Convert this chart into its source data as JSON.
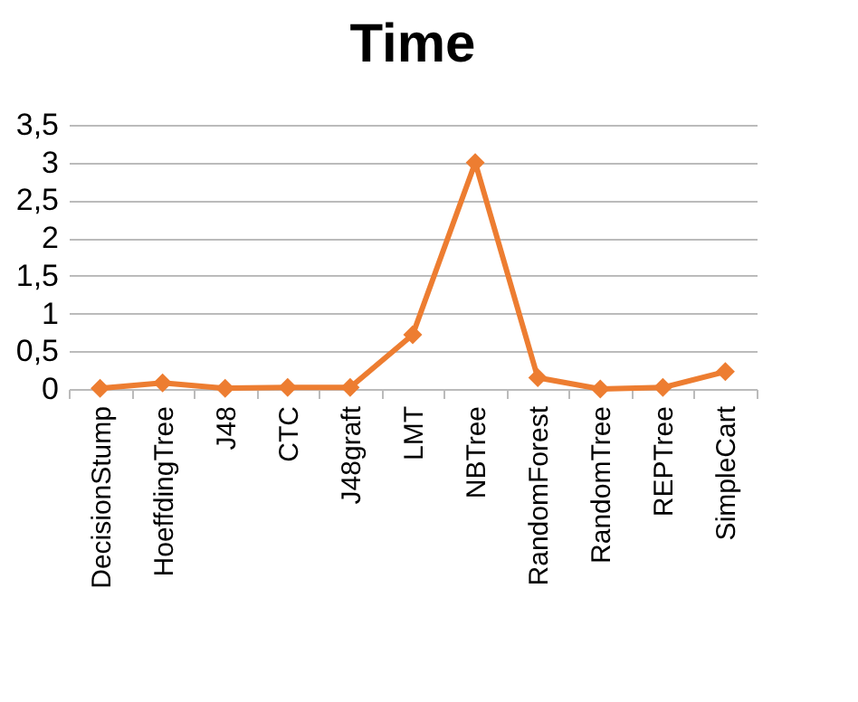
{
  "chart_data": {
    "type": "line",
    "title": "Time",
    "categories": [
      "DecisionStump",
      "HoeffdingTree",
      "J48",
      "CTC",
      "J48graft",
      "LMT",
      "NBTree",
      "RandomForest",
      "RandomTree",
      "REPTree",
      "SimpleCart"
    ],
    "series": [
      {
        "color": "#ed7d31",
        "values": [
          0.01,
          0.08,
          0.01,
          0.02,
          0.02,
          0.72,
          3.0,
          0.15,
          0.0,
          0.02,
          0.23
        ]
      }
    ],
    "ylim": [
      0,
      3.5
    ],
    "yticks": [
      0,
      {
        "value": 0.5,
        "label": "0,5"
      },
      1,
      {
        "value": 1.5,
        "label": "1,5"
      },
      2,
      {
        "value": 2.5,
        "label": "2,5"
      },
      3,
      {
        "value": 3.5,
        "label": "3,5"
      }
    ],
    "grid": "y",
    "marker": "diamond",
    "line_style": "solid"
  }
}
